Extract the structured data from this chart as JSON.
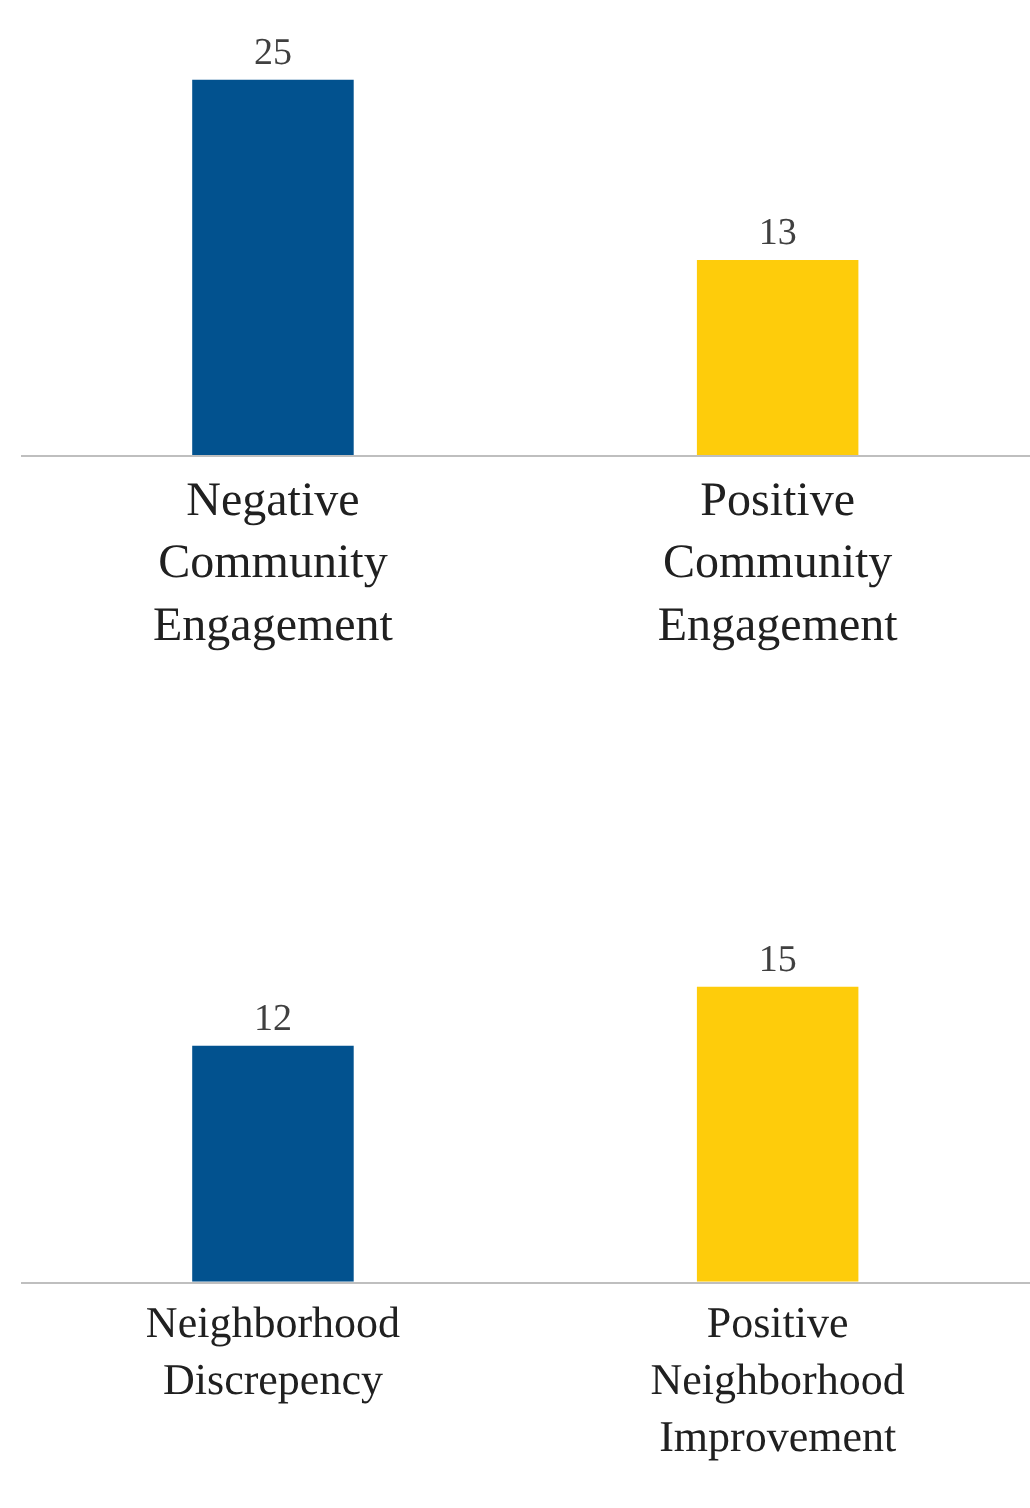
{
  "chart_data": [
    {
      "type": "bar",
      "categories": [
        "Negative Community Engagement",
        "Positive Community Engagement"
      ],
      "values": [
        25,
        13
      ],
      "colors": [
        "#02528f",
        "#fecc0b"
      ],
      "data_labels": true
    },
    {
      "type": "bar",
      "categories": [
        "Neighborhood Discrepency",
        "Positive Neighborhood Improvement"
      ],
      "values": [
        12,
        15
      ],
      "colors": [
        "#02528f",
        "#fecc0b"
      ],
      "data_labels": true
    }
  ]
}
